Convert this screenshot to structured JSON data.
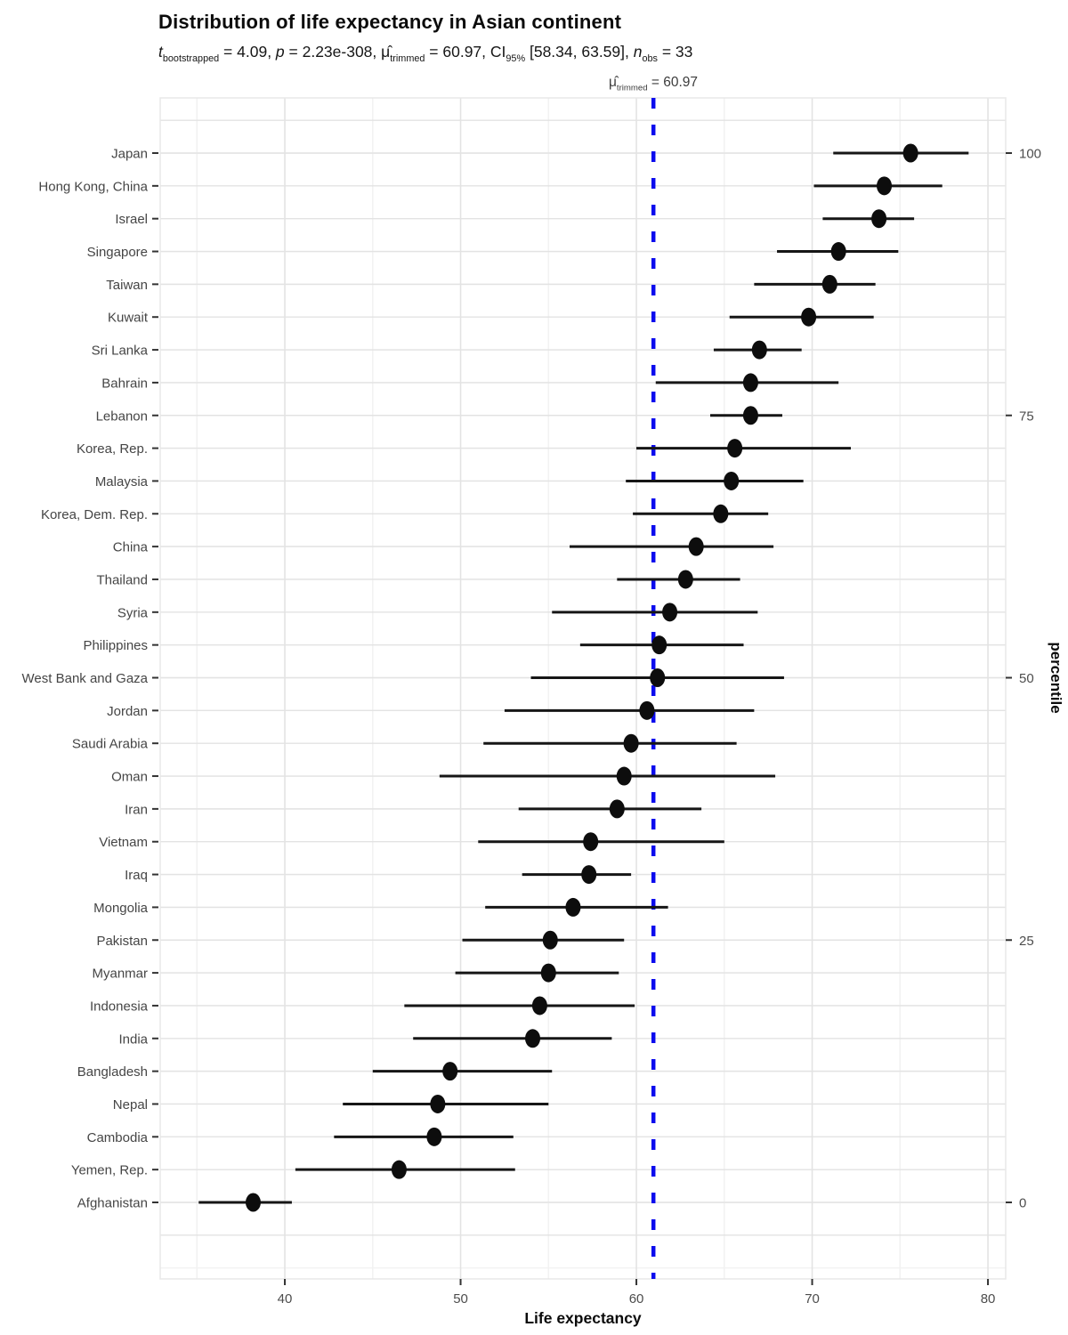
{
  "header": {
    "title": "Distribution of life expectancy in Asian continent",
    "subtitle_segments": [
      {
        "text": "t",
        "style": "italic"
      },
      {
        "text": "bootstrapped",
        "style": "sub"
      },
      {
        "text": " = 4.09, "
      },
      {
        "text": "p",
        "style": "italic"
      },
      {
        "text": " = 2.23e-308, "
      },
      {
        "text": "μ̂"
      },
      {
        "text": "trimmed",
        "style": "sub"
      },
      {
        "text": " = 60.97, CI"
      },
      {
        "text": "95%",
        "style": "sub"
      },
      {
        "text": " [58.34, 63.59], "
      },
      {
        "text": "n",
        "style": "italic"
      },
      {
        "text": "obs",
        "style": "sub"
      },
      {
        "text": " = 33"
      }
    ]
  },
  "chart_data": {
    "type": "scatter",
    "title": "Distribution of life expectancy in Asian continent",
    "subtitle": "t(bootstrapped) = 4.09, p = 2.23e-308, mu-hat(trimmed) = 60.97, CI95% [58.34, 63.59], n(obs) = 33",
    "xlabel": "Life expectancy",
    "ylabel_right": "percentile",
    "xlim": [
      32.91,
      81.01
    ],
    "x_ticks": [
      40,
      50,
      60,
      70,
      80
    ],
    "x_minor_ticks": [
      35,
      45,
      55,
      65,
      75
    ],
    "right_axis_ticks": [
      0,
      25,
      50,
      75,
      100
    ],
    "grid": true,
    "legend": "none",
    "vline": {
      "x": 60.97,
      "label_segments": [
        {
          "text": "μ̂"
        },
        {
          "text": "trimmed",
          "style": "sub"
        },
        {
          "text": " = 60.97"
        }
      ]
    },
    "points": [
      {
        "label": "Japan",
        "value": 75.6,
        "ci_low": 71.2,
        "ci_high": 78.9,
        "percentile": 100
      },
      {
        "label": "Hong Kong, China",
        "value": 74.1,
        "ci_low": 70.1,
        "ci_high": 77.4,
        "percentile": 96.9
      },
      {
        "label": "Israel",
        "value": 73.8,
        "ci_low": 70.6,
        "ci_high": 75.8,
        "percentile": 93.8
      },
      {
        "label": "Singapore",
        "value": 71.5,
        "ci_low": 68.0,
        "ci_high": 74.9,
        "percentile": 90.6
      },
      {
        "label": "Taiwan",
        "value": 71.0,
        "ci_low": 66.7,
        "ci_high": 73.6,
        "percentile": 87.5
      },
      {
        "label": "Kuwait",
        "value": 69.8,
        "ci_low": 65.3,
        "ci_high": 73.5,
        "percentile": 84.4
      },
      {
        "label": "Sri Lanka",
        "value": 67.0,
        "ci_low": 64.4,
        "ci_high": 69.4,
        "percentile": 81.2
      },
      {
        "label": "Bahrain",
        "value": 66.5,
        "ci_low": 61.1,
        "ci_high": 71.5,
        "percentile": 78.1
      },
      {
        "label": "Lebanon",
        "value": 66.5,
        "ci_low": 64.2,
        "ci_high": 68.3,
        "percentile": 75
      },
      {
        "label": "Korea, Rep.",
        "value": 65.6,
        "ci_low": 60.0,
        "ci_high": 72.2,
        "percentile": 71.9
      },
      {
        "label": "Malaysia",
        "value": 65.4,
        "ci_low": 59.4,
        "ci_high": 69.5,
        "percentile": 68.8
      },
      {
        "label": "Korea, Dem. Rep.",
        "value": 64.8,
        "ci_low": 59.8,
        "ci_high": 67.5,
        "percentile": 65.6
      },
      {
        "label": "China",
        "value": 63.4,
        "ci_low": 56.2,
        "ci_high": 67.8,
        "percentile": 62.5
      },
      {
        "label": "Thailand",
        "value": 62.8,
        "ci_low": 58.9,
        "ci_high": 65.9,
        "percentile": 59.4
      },
      {
        "label": "Syria",
        "value": 61.9,
        "ci_low": 55.2,
        "ci_high": 66.9,
        "percentile": 56.2
      },
      {
        "label": "Philippines",
        "value": 61.3,
        "ci_low": 56.8,
        "ci_high": 66.1,
        "percentile": 53.1
      },
      {
        "label": "West Bank and Gaza",
        "value": 61.2,
        "ci_low": 54.0,
        "ci_high": 68.4,
        "percentile": 50
      },
      {
        "label": "Jordan",
        "value": 60.6,
        "ci_low": 52.5,
        "ci_high": 66.7,
        "percentile": 46.9
      },
      {
        "label": "Saudi Arabia",
        "value": 59.7,
        "ci_low": 51.3,
        "ci_high": 65.7,
        "percentile": 43.8
      },
      {
        "label": "Oman",
        "value": 59.3,
        "ci_low": 48.8,
        "ci_high": 67.9,
        "percentile": 40.6
      },
      {
        "label": "Iran",
        "value": 58.9,
        "ci_low": 53.3,
        "ci_high": 63.7,
        "percentile": 37.5
      },
      {
        "label": "Vietnam",
        "value": 57.4,
        "ci_low": 51.0,
        "ci_high": 65.0,
        "percentile": 34.4
      },
      {
        "label": "Iraq",
        "value": 57.3,
        "ci_low": 53.5,
        "ci_high": 59.7,
        "percentile": 31.2
      },
      {
        "label": "Mongolia",
        "value": 56.4,
        "ci_low": 51.4,
        "ci_high": 61.8,
        "percentile": 28.1
      },
      {
        "label": "Pakistan",
        "value": 55.1,
        "ci_low": 50.1,
        "ci_high": 59.3,
        "percentile": 25
      },
      {
        "label": "Myanmar",
        "value": 55.0,
        "ci_low": 49.7,
        "ci_high": 59.0,
        "percentile": 21.9
      },
      {
        "label": "Indonesia",
        "value": 54.5,
        "ci_low": 46.8,
        "ci_high": 59.9,
        "percentile": 18.8
      },
      {
        "label": "India",
        "value": 54.1,
        "ci_low": 47.3,
        "ci_high": 58.6,
        "percentile": 15.6
      },
      {
        "label": "Bangladesh",
        "value": 49.4,
        "ci_low": 45.0,
        "ci_high": 55.2,
        "percentile": 12.5
      },
      {
        "label": "Nepal",
        "value": 48.7,
        "ci_low": 43.3,
        "ci_high": 55.0,
        "percentile": 9.4
      },
      {
        "label": "Cambodia",
        "value": 48.5,
        "ci_low": 42.8,
        "ci_high": 53.0,
        "percentile": 6.2
      },
      {
        "label": "Yemen, Rep.",
        "value": 46.5,
        "ci_low": 40.6,
        "ci_high": 53.1,
        "percentile": 3.1
      },
      {
        "label": "Afghanistan",
        "value": 38.2,
        "ci_low": 35.1,
        "ci_high": 40.4,
        "percentile": 0
      }
    ],
    "colors": {
      "point": "#0d0d0d",
      "ci_line": "#161616",
      "vline_blue": "#0b0bee",
      "grid_major": "#e3e3e3",
      "grid_minor": "#f2f2f2",
      "panel_border": "#e8e8e8",
      "axis_text": "#4d4d4d",
      "tick_mark": "#333333",
      "title_text": "#0b0b0b"
    }
  }
}
